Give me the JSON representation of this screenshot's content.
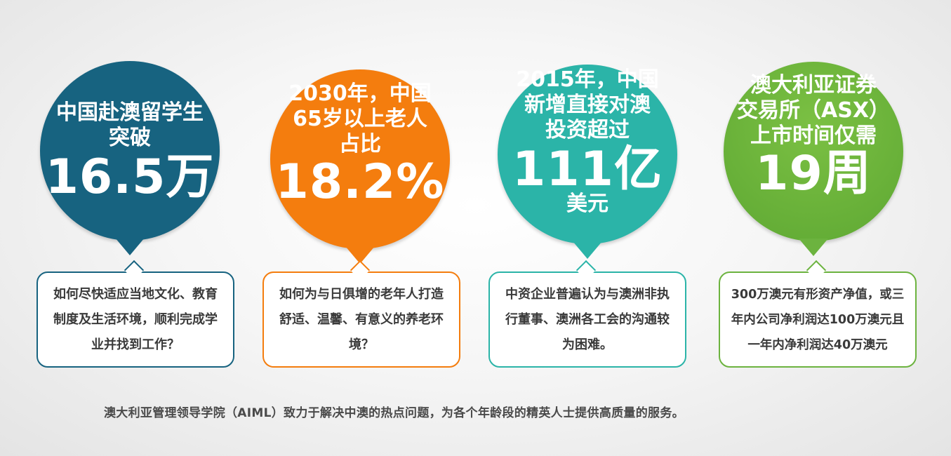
{
  "colors": {
    "blue": "#176380",
    "orange": "#f47d0e",
    "teal": "#2bb4a8",
    "green": "#6cb33f"
  },
  "cards": [
    {
      "headline": [
        "中国赴澳留学生",
        "突破"
      ],
      "big": "16.5万",
      "unit": "",
      "text": "如何尽快适应当地文化、教育制度及生活环境，顺利完成学业并找到工作？"
    },
    {
      "headline": [
        "2030年，中国",
        "65岁以上老人",
        "占比"
      ],
      "big": "18.2%",
      "unit": "",
      "text": "如何为与日俱增的老年人打造舒适、温馨、有意义的养老环境？"
    },
    {
      "headline": [
        "2015年，中国",
        "新增直接对澳",
        "投资超过"
      ],
      "big": "111亿",
      "unit": "美元",
      "text": "中资企业普遍认为与澳洲非执行董事、澳洲各工会的沟通较为困难。"
    },
    {
      "headline": [
        "澳大利亚证券",
        "交易所（ASX）",
        "上市时间仅需"
      ],
      "big": "19周",
      "unit": "",
      "text": "300万澳元有形资产净值，或三年内公司净利润达100万澳元且一年内净利润达40万澳元"
    }
  ],
  "footer": "澳大利亚管理领导学院（AIML）致力于解决中澳的热点问题，为各个年龄段的精英人士提供高质量的服务。"
}
